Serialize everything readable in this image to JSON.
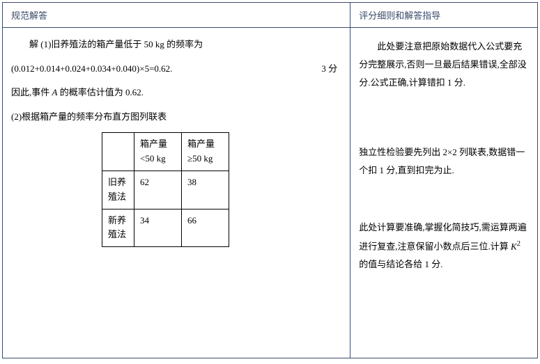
{
  "header": {
    "left": "规范解答",
    "right": "评分细则和解答指导"
  },
  "answer": {
    "line1": "解  (1)旧养殖法的箱产量低于 50 kg 的频率为",
    "line2": "(0.012+0.014+0.024+0.034+0.040)×5=0.62.",
    "score1": "3 分",
    "line3_pre": "因此,事件 ",
    "line3_var": "A",
    "line3_post": " 的概率估计值为 0.62.",
    "line4": "(2)根据箱产量的频率分布直方图列联表"
  },
  "contingency": {
    "col1": "箱产量<50 kg",
    "col2": "箱产量≥50 kg",
    "row1_label": "旧养殖法",
    "row1_c1": "62",
    "row1_c2": "38",
    "row2_label": "新养殖法",
    "row2_c1": "34",
    "row2_c2": "66"
  },
  "guide": {
    "p1": "此处要注意把原始数据代入公式要充分完整展示,否则一旦最后结果错误,全部没分.公式正确,计算错扣 1 分.",
    "p2": "独立性检验要先列出 2×2 列联表,数据错一个扣 1 分,直到扣完为止.",
    "p3_pre": "此处计算要准确,掌握化简技巧,需运算两遍进行复查,注意保留小数点后三位.计算 ",
    "p3_k": "K",
    "p3_sup": "2",
    "p3_post": " 的值与结论各给 1 分."
  }
}
